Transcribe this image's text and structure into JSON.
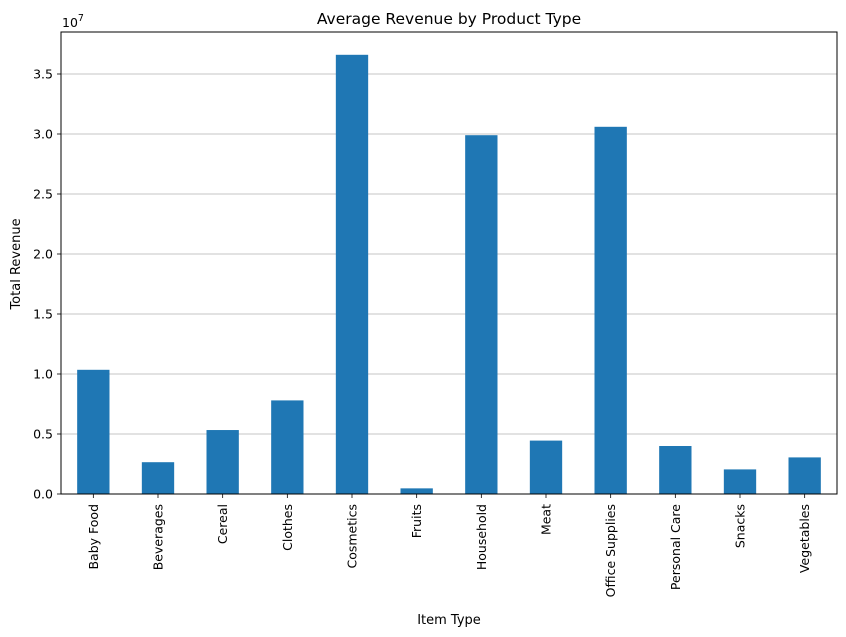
{
  "chart_data": {
    "type": "bar",
    "title": "Average Revenue by Product Type",
    "xlabel": "Item Type",
    "ylabel": "Total Revenue",
    "y_offset_label": "1e7",
    "ylim": [
      0,
      38500000
    ],
    "yticks": [
      0,
      5000000,
      10000000,
      15000000,
      20000000,
      25000000,
      30000000,
      35000000
    ],
    "ytick_labels": [
      "0.0",
      "0.5",
      "1.0",
      "1.5",
      "2.0",
      "2.5",
      "3.0",
      "3.5"
    ],
    "grid": "y-axis horizontal gridlines",
    "bar_color": "#1f77b4",
    "categories": [
      "Baby Food",
      "Beverages",
      "Cereal",
      "Clothes",
      "Cosmetics",
      "Fruits",
      "Household",
      "Meat",
      "Office Supplies",
      "Personal Care",
      "Snacks",
      "Vegetables"
    ],
    "values": [
      10350000,
      2650000,
      5330000,
      7800000,
      36600000,
      470000,
      29900000,
      4450000,
      30600000,
      4000000,
      2050000,
      3050000
    ]
  }
}
